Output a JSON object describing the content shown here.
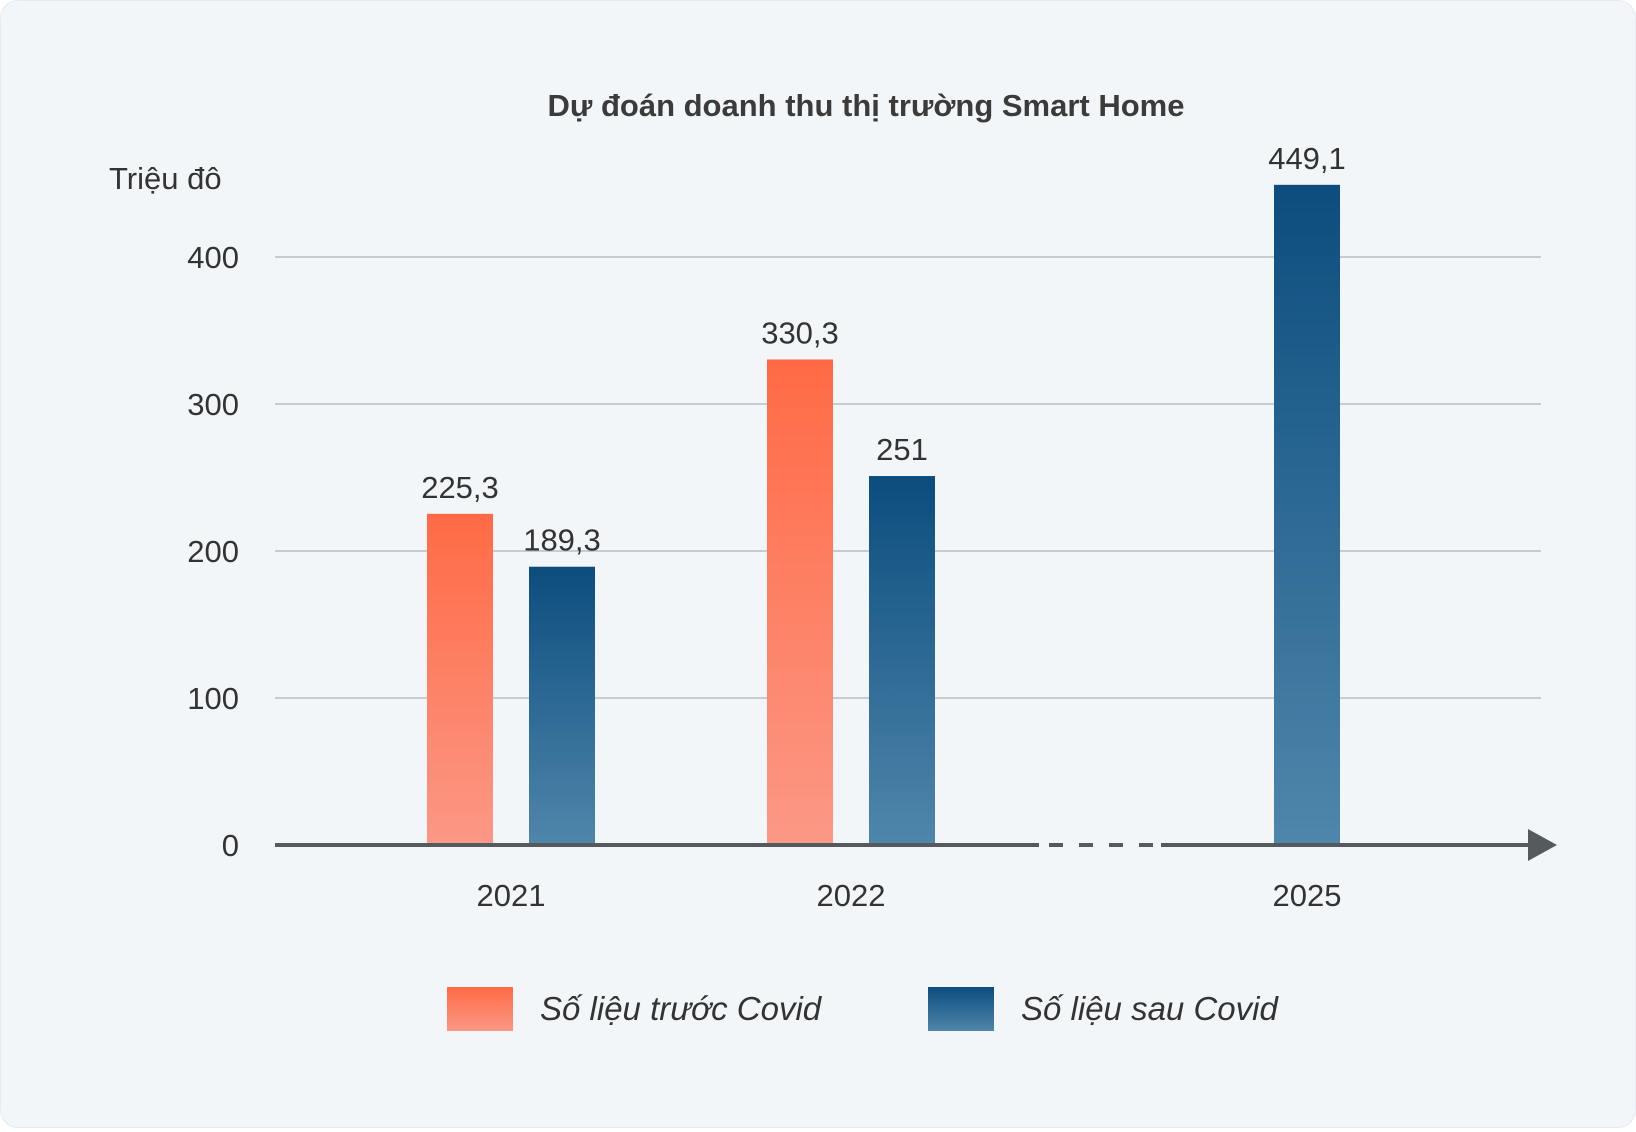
{
  "chart_data": {
    "type": "bar",
    "title": "Dự đoán doanh thu thị trường Smart Home",
    "ylabel": "Triệu đô",
    "xlabel": "",
    "ylim": [
      0,
      430
    ],
    "yticks": [
      "0",
      "100",
      "200",
      "300",
      "400"
    ],
    "categories": [
      "2021",
      "2022",
      "2025"
    ],
    "series": [
      {
        "name": "Số liệu trước Covid",
        "values": [
          225.3,
          330.3,
          null
        ],
        "labels": [
          "225,3",
          "330,3",
          ""
        ],
        "color_top": "#ff6a45",
        "color_bottom": "#fb9886"
      },
      {
        "name": "Số liệu sau Covid",
        "values": [
          189.3,
          251,
          449.1
        ],
        "labels": [
          "189,3",
          "251",
          "449,1"
        ],
        "color_top": "#0c4d7e",
        "color_bottom": "#4f86ab"
      }
    ],
    "axis_break_between": [
      "2022",
      "2025"
    ],
    "grid": true,
    "legend_position": "bottom-center"
  }
}
